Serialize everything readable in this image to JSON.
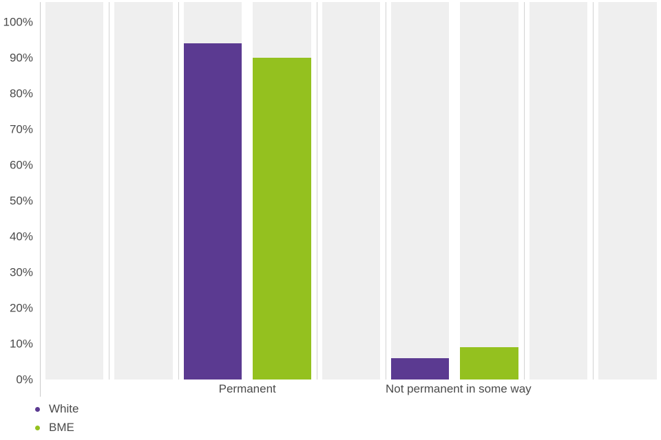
{
  "chart_data": {
    "type": "bar",
    "categories": [
      "Permanent",
      "Not permanent in some way"
    ],
    "series": [
      {
        "name": "White",
        "color": "#5b3a91",
        "values": [
          94,
          6
        ]
      },
      {
        "name": "BME",
        "color": "#94c11f",
        "values": [
          90,
          9
        ]
      }
    ],
    "y_axis": {
      "ticks": [
        "0%",
        "10%",
        "20%",
        "30%",
        "40%",
        "50%",
        "60%",
        "70%",
        "80%",
        "90%",
        "100%"
      ],
      "min": 0,
      "max": 100,
      "plot_max": 105.5
    },
    "legend": {
      "position": "bottom-left",
      "items": [
        "White",
        "BME"
      ]
    },
    "grid": "none",
    "background_bands": true,
    "title": "",
    "xlabel": "",
    "ylabel": ""
  },
  "colors": {
    "band": "#efefef",
    "separator": "#d2d2d2",
    "axis_line": "#c9c9c9",
    "text": "#4a4a4a",
    "background": "#ffffff"
  }
}
